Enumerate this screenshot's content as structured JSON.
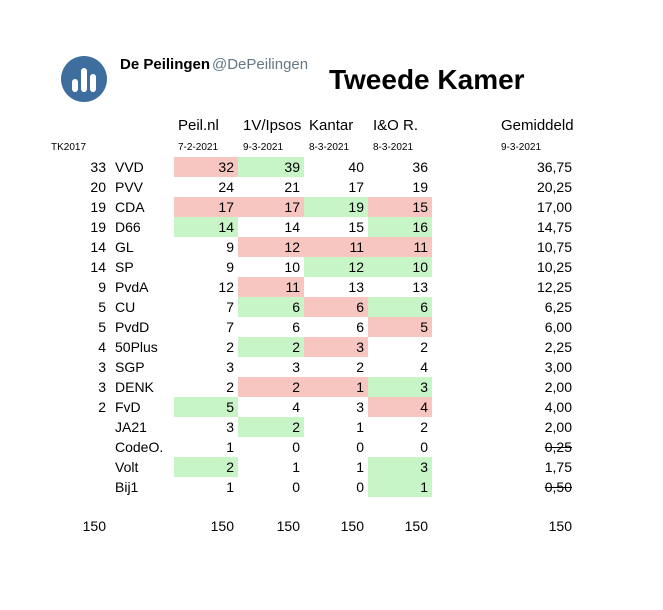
{
  "account": {
    "name": "De Peilingen",
    "handle": "@DePeilingen"
  },
  "title": "Tweede Kamer",
  "left_label": "TK2017",
  "pollsters": [
    {
      "name": "Peil.nl",
      "date": "7-2-2021"
    },
    {
      "name": "1V/Ipsos",
      "date": "9-3-2021"
    },
    {
      "name": "Kantar",
      "date": "8-3-2021"
    },
    {
      "name": "I&O R.",
      "date": "8-3-2021"
    }
  ],
  "average": {
    "label": "Gemiddeld",
    "date": "9-3-2021"
  },
  "colors": {
    "higher": "#f8c6c0",
    "lower": "#c7f5c7",
    "avatar": "#3d6e9e"
  },
  "rows": [
    {
      "tk": "33",
      "party": "VVD",
      "values": [
        "32",
        "39",
        "40",
        "36"
      ],
      "colors": [
        "red",
        "green",
        "",
        ""
      ],
      "avg": "36,75",
      "strike": false
    },
    {
      "tk": "20",
      "party": "PVV",
      "values": [
        "24",
        "21",
        "17",
        "19"
      ],
      "colors": [
        "",
        "",
        "",
        ""
      ],
      "avg": "20,25",
      "strike": false
    },
    {
      "tk": "19",
      "party": "CDA",
      "values": [
        "17",
        "17",
        "19",
        "15"
      ],
      "colors": [
        "red",
        "red",
        "green",
        "red"
      ],
      "avg": "17,00",
      "strike": false
    },
    {
      "tk": "19",
      "party": "D66",
      "values": [
        "14",
        "14",
        "15",
        "16"
      ],
      "colors": [
        "green",
        "",
        "",
        "green"
      ],
      "avg": "14,75",
      "strike": false
    },
    {
      "tk": "14",
      "party": "GL",
      "values": [
        "9",
        "12",
        "11",
        "11"
      ],
      "colors": [
        "",
        "red",
        "red",
        "red"
      ],
      "avg": "10,75",
      "strike": false
    },
    {
      "tk": "14",
      "party": "SP",
      "values": [
        "9",
        "10",
        "12",
        "10"
      ],
      "colors": [
        "",
        "",
        "green",
        "green"
      ],
      "avg": "10,25",
      "strike": false
    },
    {
      "tk": "9",
      "party": "PvdA",
      "values": [
        "12",
        "11",
        "13",
        "13"
      ],
      "colors": [
        "",
        "red",
        "",
        ""
      ],
      "avg": "12,25",
      "strike": false
    },
    {
      "tk": "5",
      "party": "CU",
      "values": [
        "7",
        "6",
        "6",
        "6"
      ],
      "colors": [
        "",
        "green",
        "red",
        "green"
      ],
      "avg": "6,25",
      "strike": false
    },
    {
      "tk": "5",
      "party": "PvdD",
      "values": [
        "7",
        "6",
        "6",
        "5"
      ],
      "colors": [
        "",
        "",
        "",
        "red"
      ],
      "avg": "6,00",
      "strike": false
    },
    {
      "tk": "4",
      "party": "50Plus",
      "values": [
        "2",
        "2",
        "3",
        "2"
      ],
      "colors": [
        "",
        "green",
        "red",
        ""
      ],
      "avg": "2,25",
      "strike": false
    },
    {
      "tk": "3",
      "party": "SGP",
      "values": [
        "3",
        "3",
        "2",
        "4"
      ],
      "colors": [
        "",
        "",
        "",
        ""
      ],
      "avg": "3,00",
      "strike": false
    },
    {
      "tk": "3",
      "party": "DENK",
      "values": [
        "2",
        "2",
        "1",
        "3"
      ],
      "colors": [
        "",
        "red",
        "red",
        "green"
      ],
      "avg": "2,00",
      "strike": false
    },
    {
      "tk": "2",
      "party": "FvD",
      "values": [
        "5",
        "4",
        "3",
        "4"
      ],
      "colors": [
        "green",
        "",
        "",
        "red"
      ],
      "avg": "4,00",
      "strike": false
    },
    {
      "tk": "",
      "party": "JA21",
      "values": [
        "3",
        "2",
        "1",
        "2"
      ],
      "colors": [
        "",
        "green",
        "",
        ""
      ],
      "avg": "2,00",
      "strike": false
    },
    {
      "tk": "",
      "party": "CodeO.",
      "values": [
        "1",
        "0",
        "0",
        "0"
      ],
      "colors": [
        "",
        "",
        "",
        ""
      ],
      "avg": "0,25",
      "strike": true
    },
    {
      "tk": "",
      "party": "Volt",
      "values": [
        "2",
        "1",
        "1",
        "3"
      ],
      "colors": [
        "green",
        "",
        "",
        "green"
      ],
      "avg": "1,75",
      "strike": false
    },
    {
      "tk": "",
      "party": "Bij1",
      "values": [
        "1",
        "0",
        "0",
        "1"
      ],
      "colors": [
        "",
        "",
        "",
        "green"
      ],
      "avg": "0,50",
      "strike": true
    }
  ],
  "totals": {
    "tk": "150",
    "values": [
      "150",
      "150",
      "150",
      "150"
    ],
    "avg": "150"
  }
}
